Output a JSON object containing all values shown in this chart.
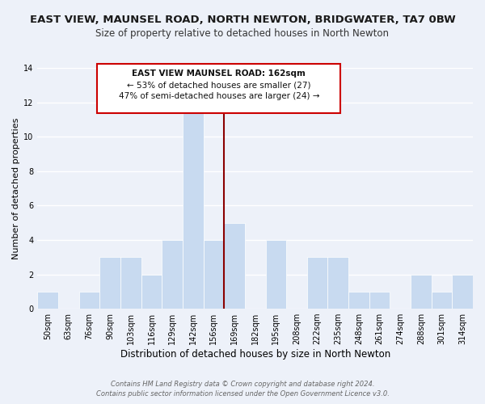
{
  "title": "EAST VIEW, MAUNSEL ROAD, NORTH NEWTON, BRIDGWATER, TA7 0BW",
  "subtitle": "Size of property relative to detached houses in North Newton",
  "xlabel": "Distribution of detached houses by size in North Newton",
  "ylabel": "Number of detached properties",
  "bar_color": "#c8daf0",
  "bar_edge_color": "#c8daf0",
  "categories": [
    "50sqm",
    "63sqm",
    "76sqm",
    "90sqm",
    "103sqm",
    "116sqm",
    "129sqm",
    "142sqm",
    "156sqm",
    "169sqm",
    "182sqm",
    "195sqm",
    "208sqm",
    "222sqm",
    "235sqm",
    "248sqm",
    "261sqm",
    "274sqm",
    "288sqm",
    "301sqm",
    "314sqm"
  ],
  "values": [
    1,
    0,
    1,
    3,
    3,
    2,
    4,
    12,
    4,
    5,
    0,
    4,
    0,
    3,
    3,
    1,
    1,
    0,
    2,
    1,
    2
  ],
  "ylim": [
    0,
    14
  ],
  "yticks": [
    0,
    2,
    4,
    6,
    8,
    10,
    12,
    14
  ],
  "vline_x_index": 8,
  "vline_color": "#8b0000",
  "annotation_title": "EAST VIEW MAUNSEL ROAD: 162sqm",
  "annotation_line1": "← 53% of detached houses are smaller (27)",
  "annotation_line2": "47% of semi-detached houses are larger (24) →",
  "annotation_box_color": "#ffffff",
  "annotation_box_edge": "#cc0000",
  "footer1": "Contains HM Land Registry data © Crown copyright and database right 2024.",
  "footer2": "Contains public sector information licensed under the Open Government Licence v3.0.",
  "bg_color": "#edf1f9",
  "grid_color": "#ffffff",
  "title_fontsize": 9.5,
  "subtitle_fontsize": 8.5,
  "xlabel_fontsize": 8.5,
  "ylabel_fontsize": 8,
  "tick_fontsize": 7,
  "footer_fontsize": 6,
  "ann_fontsize": 7.5
}
